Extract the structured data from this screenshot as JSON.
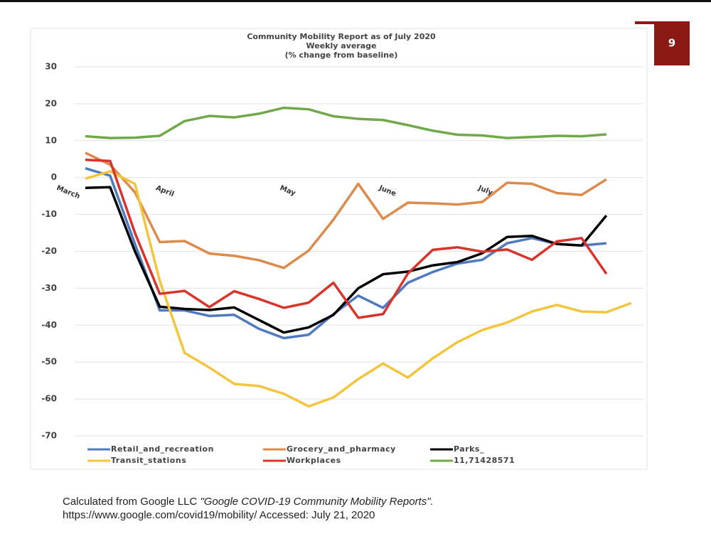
{
  "chart_data": {
    "type": "line",
    "title": [
      "Community Mobility Report as of July 2020",
      "Weekly average",
      "(% change from baseline)"
    ],
    "categories": [
      "March",
      null,
      null,
      null,
      "April",
      null,
      null,
      null,
      null,
      "May",
      null,
      null,
      null,
      "June",
      null,
      null,
      null,
      "July",
      null,
      null,
      null,
      null,
      null
    ],
    "series": [
      {
        "name": "Retail_and_recreation",
        "color": "#4f7ac0",
        "values": [
          2.5,
          0.5,
          -18,
          -36,
          -36,
          -37.5,
          -37.2,
          -41,
          -43.5,
          -42.6,
          -37,
          -32,
          -35.3,
          -28.5,
          -25.6,
          -23.3,
          -22.3,
          -17.8,
          -16.4,
          -18,
          -18.4,
          -17.8,
          null
        ]
      },
      {
        "name": "Grocery_and_pharmacy",
        "color": "#dd8a4a",
        "values": [
          6.7,
          3.5,
          -4,
          -17.5,
          -17.2,
          -20.6,
          -21.2,
          -22.4,
          -24.5,
          -19.8,
          -11.4,
          -1.7,
          -11.2,
          -6.8,
          -7,
          -7.3,
          -6.6,
          -1.4,
          -1.7,
          -4.2,
          -4.7,
          -0.5,
          null
        ]
      },
      {
        "name": "Parks_",
        "color": "#000000",
        "values": [
          -2.8,
          -2.6,
          -20,
          -35,
          -35.6,
          -35.9,
          -35.2,
          -38.6,
          -42,
          -40.6,
          -37.2,
          -30,
          -26.2,
          -25.5,
          -23.8,
          -22.9,
          -20.5,
          -16.1,
          -15.8,
          -18,
          -18.4,
          -10.3,
          null
        ]
      },
      {
        "name": "Transit_stations",
        "color": "#f2c53d",
        "values": [
          -0.3,
          1.7,
          -1.7,
          -28,
          -47.5,
          -51.5,
          -55.9,
          -56.5,
          -58.6,
          -62,
          -59.6,
          -54.6,
          -50.4,
          -54.2,
          -49,
          -44.6,
          -41.3,
          -39.3,
          -36.3,
          -34.5,
          -36.3,
          -36.5,
          -34
        ]
      },
      {
        "name": "Workplaces",
        "color": "#d9342b",
        "values": [
          4.8,
          4.5,
          -15,
          -31.5,
          -30.7,
          -35.1,
          -30.8,
          -32.9,
          -35.3,
          -33.9,
          -28.5,
          -38,
          -37,
          -26,
          -19.6,
          -18.9,
          -20.1,
          -19.5,
          -22.3,
          -17.3,
          -16.4,
          -26.1,
          null
        ]
      },
      {
        "name": "11,71428571",
        "color": "#70a84a",
        "values": [
          11.2,
          10.7,
          10.8,
          11.3,
          15.3,
          16.7,
          16.3,
          17.3,
          18.9,
          18.5,
          16.6,
          15.9,
          15.6,
          14.2,
          12.7,
          11.6,
          11.4,
          10.7,
          11,
          11.3,
          11.2,
          11.7,
          null
        ]
      }
    ],
    "ylim": [
      -70,
      30
    ],
    "yticks": [
      30,
      20,
      10,
      0,
      -10,
      -20,
      -30,
      -40,
      -50,
      -60,
      -70
    ],
    "grid": true
  },
  "slide_number": "9",
  "source": {
    "text": "Calculated from Google LLC ",
    "italic": "\"Google COVID-19 Community Mobility Reports\".",
    "url": "https://www.google.com/covid19/mobility/ Accessed: July 21, 2020"
  }
}
